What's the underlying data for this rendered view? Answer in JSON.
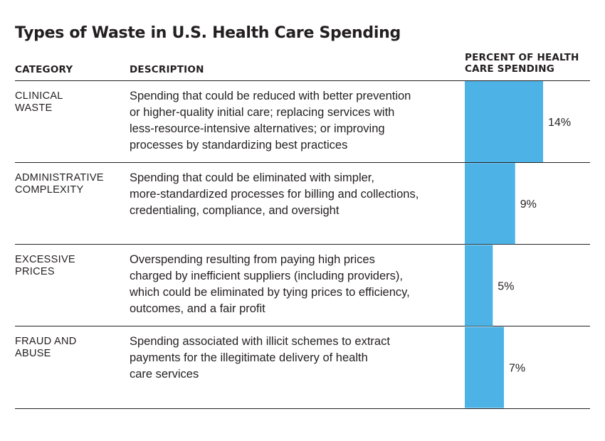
{
  "chart_data": {
    "type": "bar",
    "orientation": "horizontal",
    "title": "Types of Waste in U.S. Health Care Spending",
    "columns": {
      "category": "CATEGORY",
      "description": "DESCRIPTION",
      "percent": "PERCENT OF HEALTH CARE SPENDING"
    },
    "categories": [
      "CLINICAL WASTE",
      "ADMINISTRATIVE COMPLEXITY",
      "EXCESSIVE PRICES",
      "FRAUD AND ABUSE"
    ],
    "values": [
      14,
      9,
      5,
      7
    ],
    "value_labels": [
      "14%",
      "9%",
      "5%",
      "7%"
    ],
    "rows": [
      {
        "category_lines": [
          "CLINICAL",
          "WASTE"
        ],
        "description": "Spending that could be reduced with better prevention\nor higher-quality initial care; replacing services with\nless-resource-intensive alternatives; or improving\nprocesses by standardizing best practices"
      },
      {
        "category_lines": [
          "ADMINISTRATIVE",
          "COMPLEXITY"
        ],
        "description": "Spending that could be eliminated with simpler,\nmore-standardized processes for billing and collections,\ncredentialing, compliance, and oversight"
      },
      {
        "category_lines": [
          "EXCESSIVE",
          "PRICES"
        ],
        "description": "Overspending resulting from paying high prices\ncharged by inefficient suppliers (including providers),\nwhich could be eliminated by tying prices to efficiency,\noutcomes, and a fair profit"
      },
      {
        "category_lines": [
          "FRAUD AND",
          "ABUSE"
        ],
        "description": "Spending associated with illicit schemes to extract\npayments for the illegitimate delivery of health\ncare services"
      }
    ],
    "colors": {
      "bar": "#4db3e6",
      "text": "#231f20"
    },
    "grid": false,
    "legend": "none"
  }
}
